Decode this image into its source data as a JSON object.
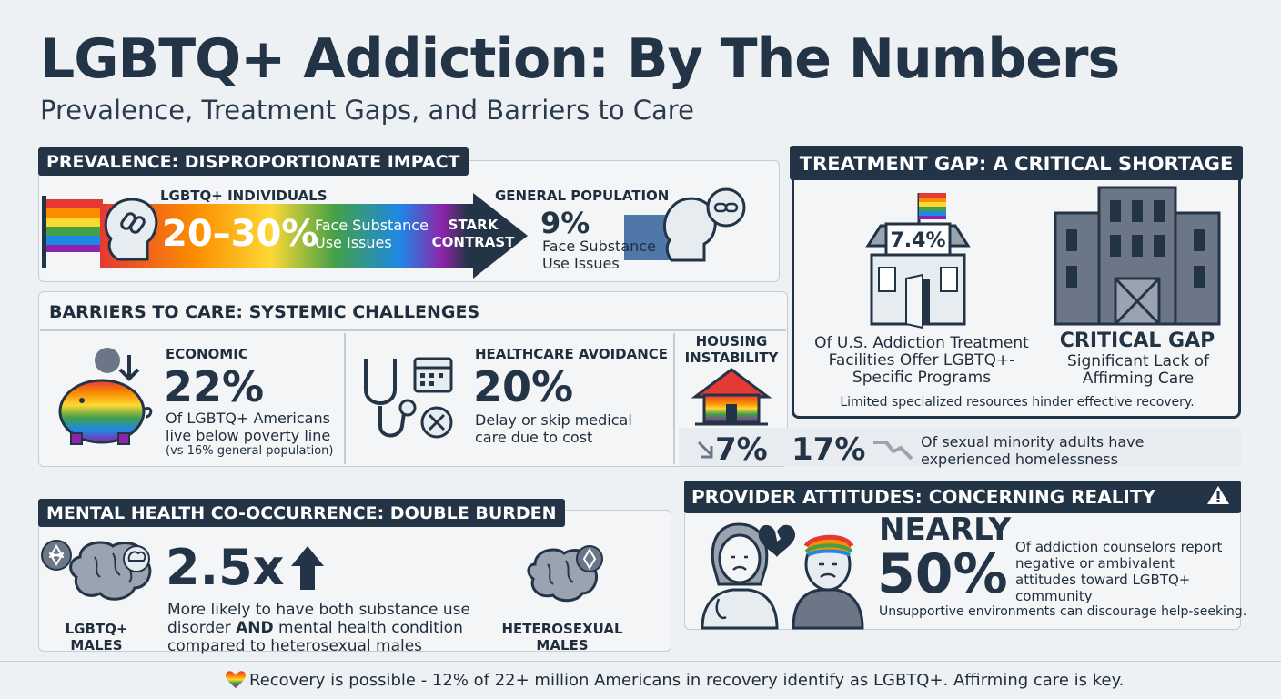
{
  "header": {
    "title": "LGBTQ+ Addiction: By The Numbers",
    "subtitle": "Prevalence, Treatment Gaps, and Barriers to Care"
  },
  "prevalence": {
    "heading": "PREVALENCE: DISPROPORTIONATE IMPACT",
    "lgbtq_label": "LGBTQ+ INDIVIDUALS",
    "lgbtq_value": "20–30%",
    "lgbtq_desc": "Face Substance Use Issues",
    "arrow_label": "STARK CONTRAST",
    "general_label": "GENERAL POPULATION",
    "general_value": "9%",
    "general_desc": "Face Substance Use Issues"
  },
  "treatment_gap": {
    "heading": "TREATMENT GAP: A CRITICAL SHORTAGE",
    "value": "7.4%",
    "desc": "Of U.S. Addiction Treatment Facilities Offer LGBTQ+-Specific Programs",
    "gap_title": "CRITICAL GAP",
    "gap_desc": "Significant Lack of Affirming Care",
    "footer": "Limited specialized resources hinder effective recovery."
  },
  "barriers": {
    "heading": "BARRIERS TO CARE: SYSTEMIC CHALLENGES",
    "economic": {
      "label": "ECONOMIC",
      "value": "22%",
      "desc": "Of LGBTQ+ Americans live below poverty line",
      "note": "(vs 16% general population)"
    },
    "healthcare": {
      "label": "HEALTHCARE AVOIDANCE",
      "value": "20%",
      "desc": "Delay or skip medical care due to cost"
    },
    "housing": {
      "label": "HOUSING INSTABILITY",
      "value_partial": "7%",
      "value": "17%",
      "desc": "Of sexual minority adults have experienced homelessness"
    }
  },
  "mental_health": {
    "heading": "MENTAL HEALTH CO-OCCURRENCE: DOUBLE BURDEN",
    "value": "2.5x",
    "desc_pre": "More likely to have both substance use disorder",
    "desc_and": "AND",
    "desc_post": "mental health condition compared to heterosexual males",
    "left_label": "LGBTQ+ MALES",
    "right_label": "HETEROSEXUAL MALES"
  },
  "provider": {
    "heading": "PROVIDER ATTITUDES: CONCERNING REALITY",
    "value_top": "NEARLY",
    "value": "50%",
    "desc": "Of addiction counselors report negative or ambivalent attitudes toward LGBTQ+ community",
    "footer": "Unsupportive environments can discourage help-seeking."
  },
  "footer": {
    "text": "Recovery is possible - 12% of 22+ million Americans in recovery identify as LGBTQ+. Affirming care is key."
  },
  "colors": {
    "navy": "#243447",
    "rainbow": [
      "#e53935",
      "#fb8c00",
      "#fdd835",
      "#43a047",
      "#1e88e5",
      "#8e24aa"
    ]
  }
}
